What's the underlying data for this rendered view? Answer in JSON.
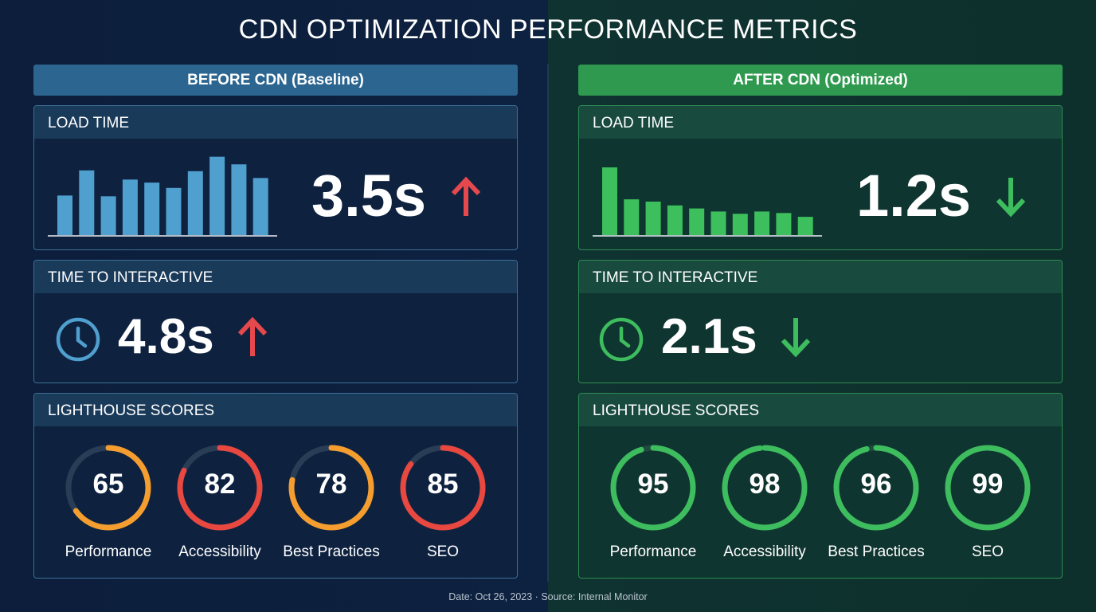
{
  "title": "CDN OPTIMIZATION PERFORMANCE METRICS",
  "colors": {
    "red": "#e5484d",
    "orange": "#f59e2f",
    "green": "#3dbd5e",
    "blue_bar": "#4f9fcf",
    "green_bar": "#3cbf5c",
    "track_before": "#2a3d56",
    "track_after": "#1f4a3e"
  },
  "before": {
    "label": "BEFORE CDN (Baseline)",
    "load_time": {
      "title": "LOAD TIME",
      "value": "3.5s",
      "trend": "up",
      "bars": [
        52,
        85,
        51,
        73,
        69,
        62,
        84,
        103,
        93,
        75
      ]
    },
    "tti": {
      "title": "TIME TO INTERACTIVE",
      "value": "4.8s",
      "trend": "up",
      "icon": "clock-icon"
    },
    "lighthouse": {
      "title": "LIGHTHOUSE SCORES",
      "scores": [
        {
          "label": "Performance",
          "value": 65,
          "color": "#f59e2f"
        },
        {
          "label": "Accessibility",
          "value": 82,
          "color": "#e8483f"
        },
        {
          "label": "Best Practices",
          "value": 78,
          "color": "#f59e2f"
        },
        {
          "label": "SEO",
          "value": 85,
          "color": "#e8483f"
        }
      ]
    }
  },
  "after": {
    "label": "AFTER CDN (Optimized)",
    "load_time": {
      "title": "LOAD TIME",
      "value": "1.2s",
      "trend": "down",
      "bars": [
        89,
        47,
        44,
        39,
        35,
        31,
        28,
        31,
        29,
        24
      ]
    },
    "tti": {
      "title": "TIME TO INTERACTIVE",
      "value": "2.1s",
      "trend": "down",
      "icon": "clock-icon"
    },
    "lighthouse": {
      "title": "LIGHTHOUSE SCORES",
      "scores": [
        {
          "label": "Performance",
          "value": 95,
          "color": "#3dbd5e"
        },
        {
          "label": "Accessibility",
          "value": 98,
          "color": "#3dbd5e"
        },
        {
          "label": "Best Practices",
          "value": 96,
          "color": "#3dbd5e"
        },
        {
          "label": "SEO",
          "value": 99,
          "color": "#3dbd5e"
        }
      ]
    }
  },
  "footer": "Date: Oct 26, 2023 · Source: Internal Monitor"
}
